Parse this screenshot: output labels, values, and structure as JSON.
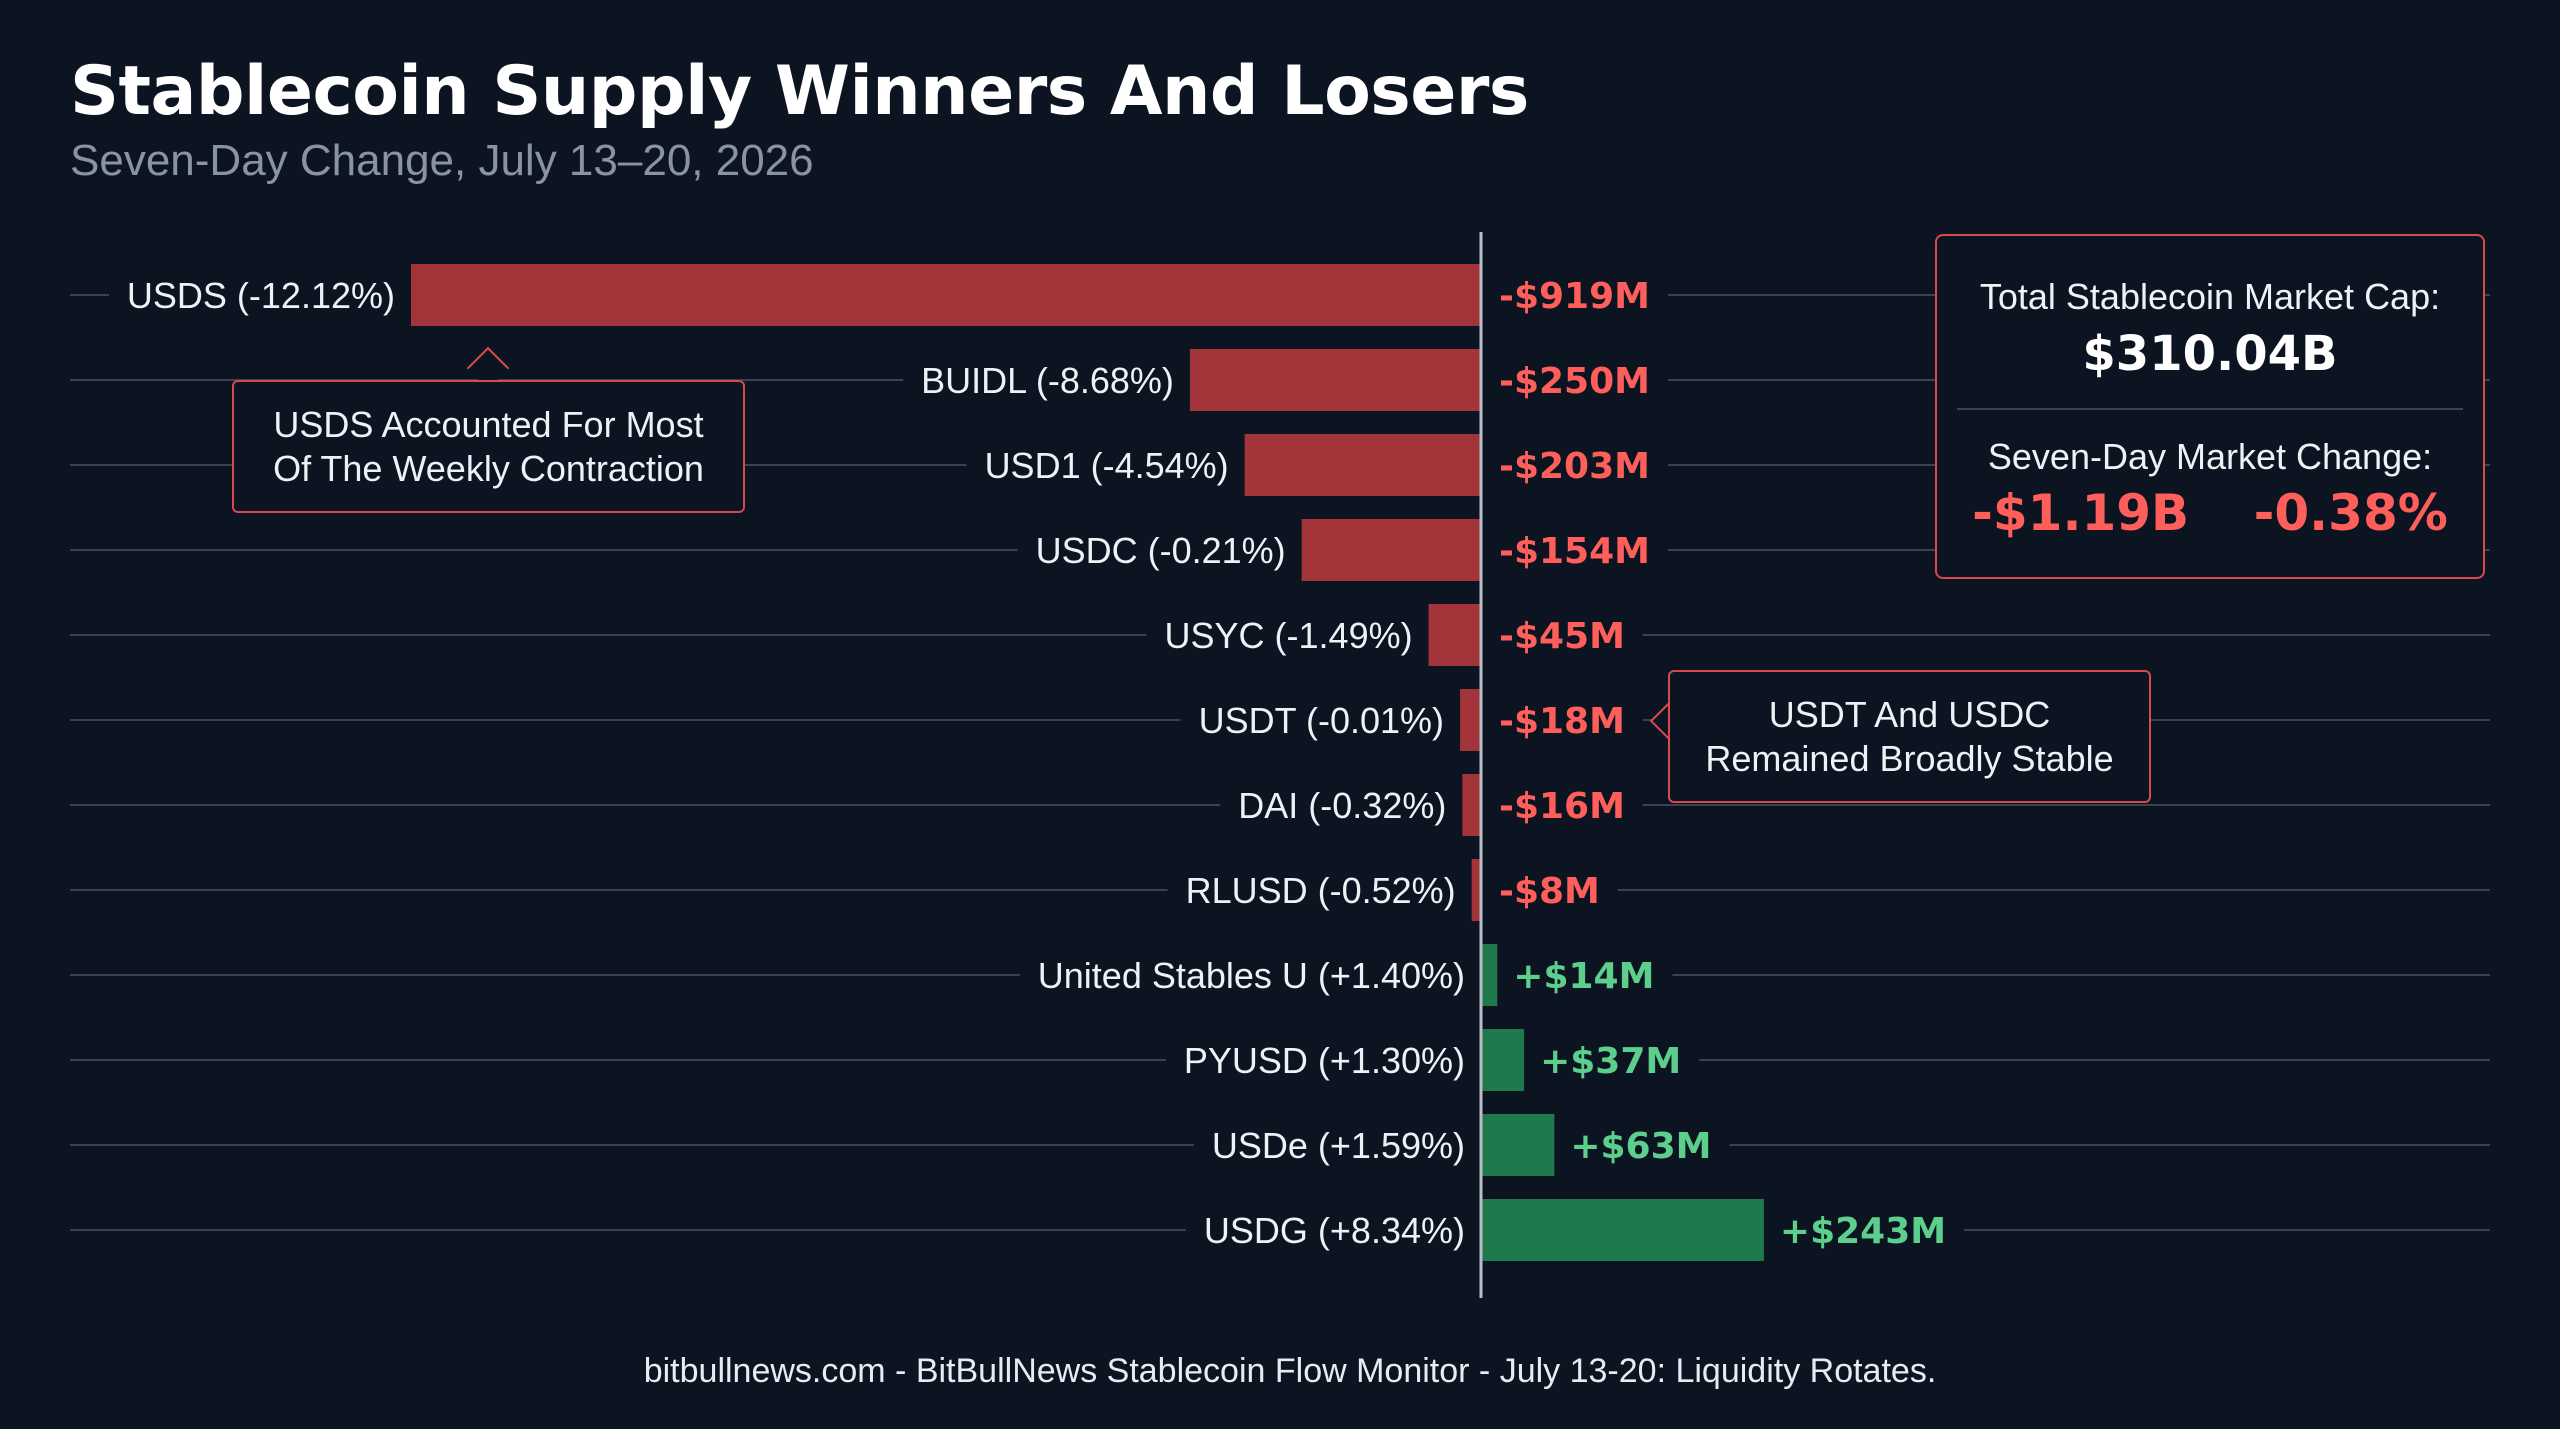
{
  "header": {
    "title": "Stablecoin Supply Winners And Losers",
    "subtitle": "Seven-Day Change, July 13–20, 2026"
  },
  "colors": {
    "negative_bar": "#a3343a",
    "positive_bar": "#1e7a4c",
    "negative_text": "#ff5f5a",
    "positive_text": "#5ccf8c",
    "background": "#0d1421"
  },
  "chart_data": {
    "type": "bar",
    "orientation": "horizontal",
    "unit": "USD millions",
    "categories": [
      "USDS (-12.12%)",
      "BUIDL (-8.68%)",
      "USD1 (-4.54%)",
      "USDC (-0.21%)",
      "USYC (-1.49%)",
      "USDT (-0.01%)",
      "DAI (-0.32%)",
      "RLUSD (-0.52%)",
      "United Stables U (+1.40%)",
      "PYUSD (+1.30%)",
      "USDe (+1.59%)",
      "USDG (+8.34%)"
    ],
    "values": [
      -919,
      -250,
      -203,
      -154,
      -45,
      -18,
      -16,
      -8,
      14,
      37,
      63,
      243
    ],
    "value_labels": [
      "-$919M",
      "-$250M",
      "-$203M",
      "-$154M",
      "-$45M",
      "-$18M",
      "-$16M",
      "-$8M",
      "+$14M",
      "+$37M",
      "+$63M",
      "+$243M"
    ],
    "xlim": [
      -919,
      634
    ],
    "grid": true
  },
  "callouts": {
    "usds": {
      "line1": "USDS Accounted For Most",
      "line2": "Of The Weekly Contraction"
    },
    "stable": {
      "line1": "USDT And USDC",
      "line2": "Remained Broadly Stable"
    }
  },
  "stats": {
    "market_cap_label": "Total Stablecoin Market Cap:",
    "market_cap_value": "$310.04B",
    "change_label": "Seven-Day Market Change:",
    "change_abs": "-$1.19B",
    "change_pct": "-0.38%"
  },
  "footer": "bitbullnews.com - BitBullNews Stablecoin Flow Monitor - July 13-20: Liquidity Rotates."
}
